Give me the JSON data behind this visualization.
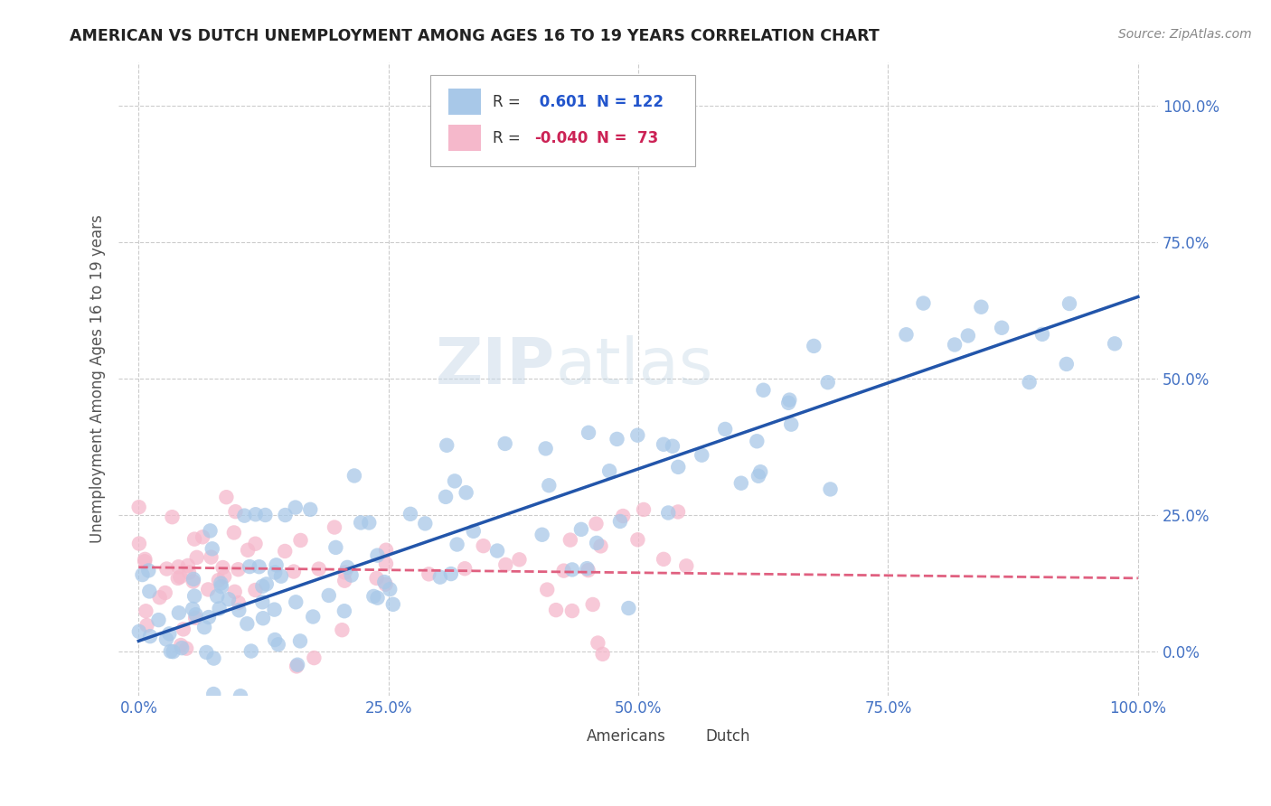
{
  "title": "AMERICAN VS DUTCH UNEMPLOYMENT AMONG AGES 16 TO 19 YEARS CORRELATION CHART",
  "source": "Source: ZipAtlas.com",
  "ylabel": "Unemployment Among Ages 16 to 19 years",
  "xlim": [
    -0.02,
    1.02
  ],
  "ylim": [
    -0.08,
    1.08
  ],
  "yticks": [
    0.0,
    0.25,
    0.5,
    0.75,
    1.0
  ],
  "xticks": [
    0.0,
    0.25,
    0.5,
    0.75,
    1.0
  ],
  "tick_labels": [
    "0.0%",
    "25.0%",
    "50.0%",
    "75.0%",
    "100.0%"
  ],
  "americans_color": "#a8c8e8",
  "dutch_color": "#f5b8cb",
  "tick_color": "#4472c4",
  "americans_r": 0.601,
  "americans_n": 122,
  "dutch_r": -0.04,
  "dutch_n": 73,
  "regression_blue": "#2255aa",
  "regression_pink": "#e06080",
  "watermark_color": "#d8e8f0",
  "blue_line_x0": 0.0,
  "blue_line_y0": 0.02,
  "blue_line_x1": 1.0,
  "blue_line_y1": 0.65,
  "pink_line_x0": 0.0,
  "pink_line_y0": 0.155,
  "pink_line_x1": 1.0,
  "pink_line_y1": 0.135
}
